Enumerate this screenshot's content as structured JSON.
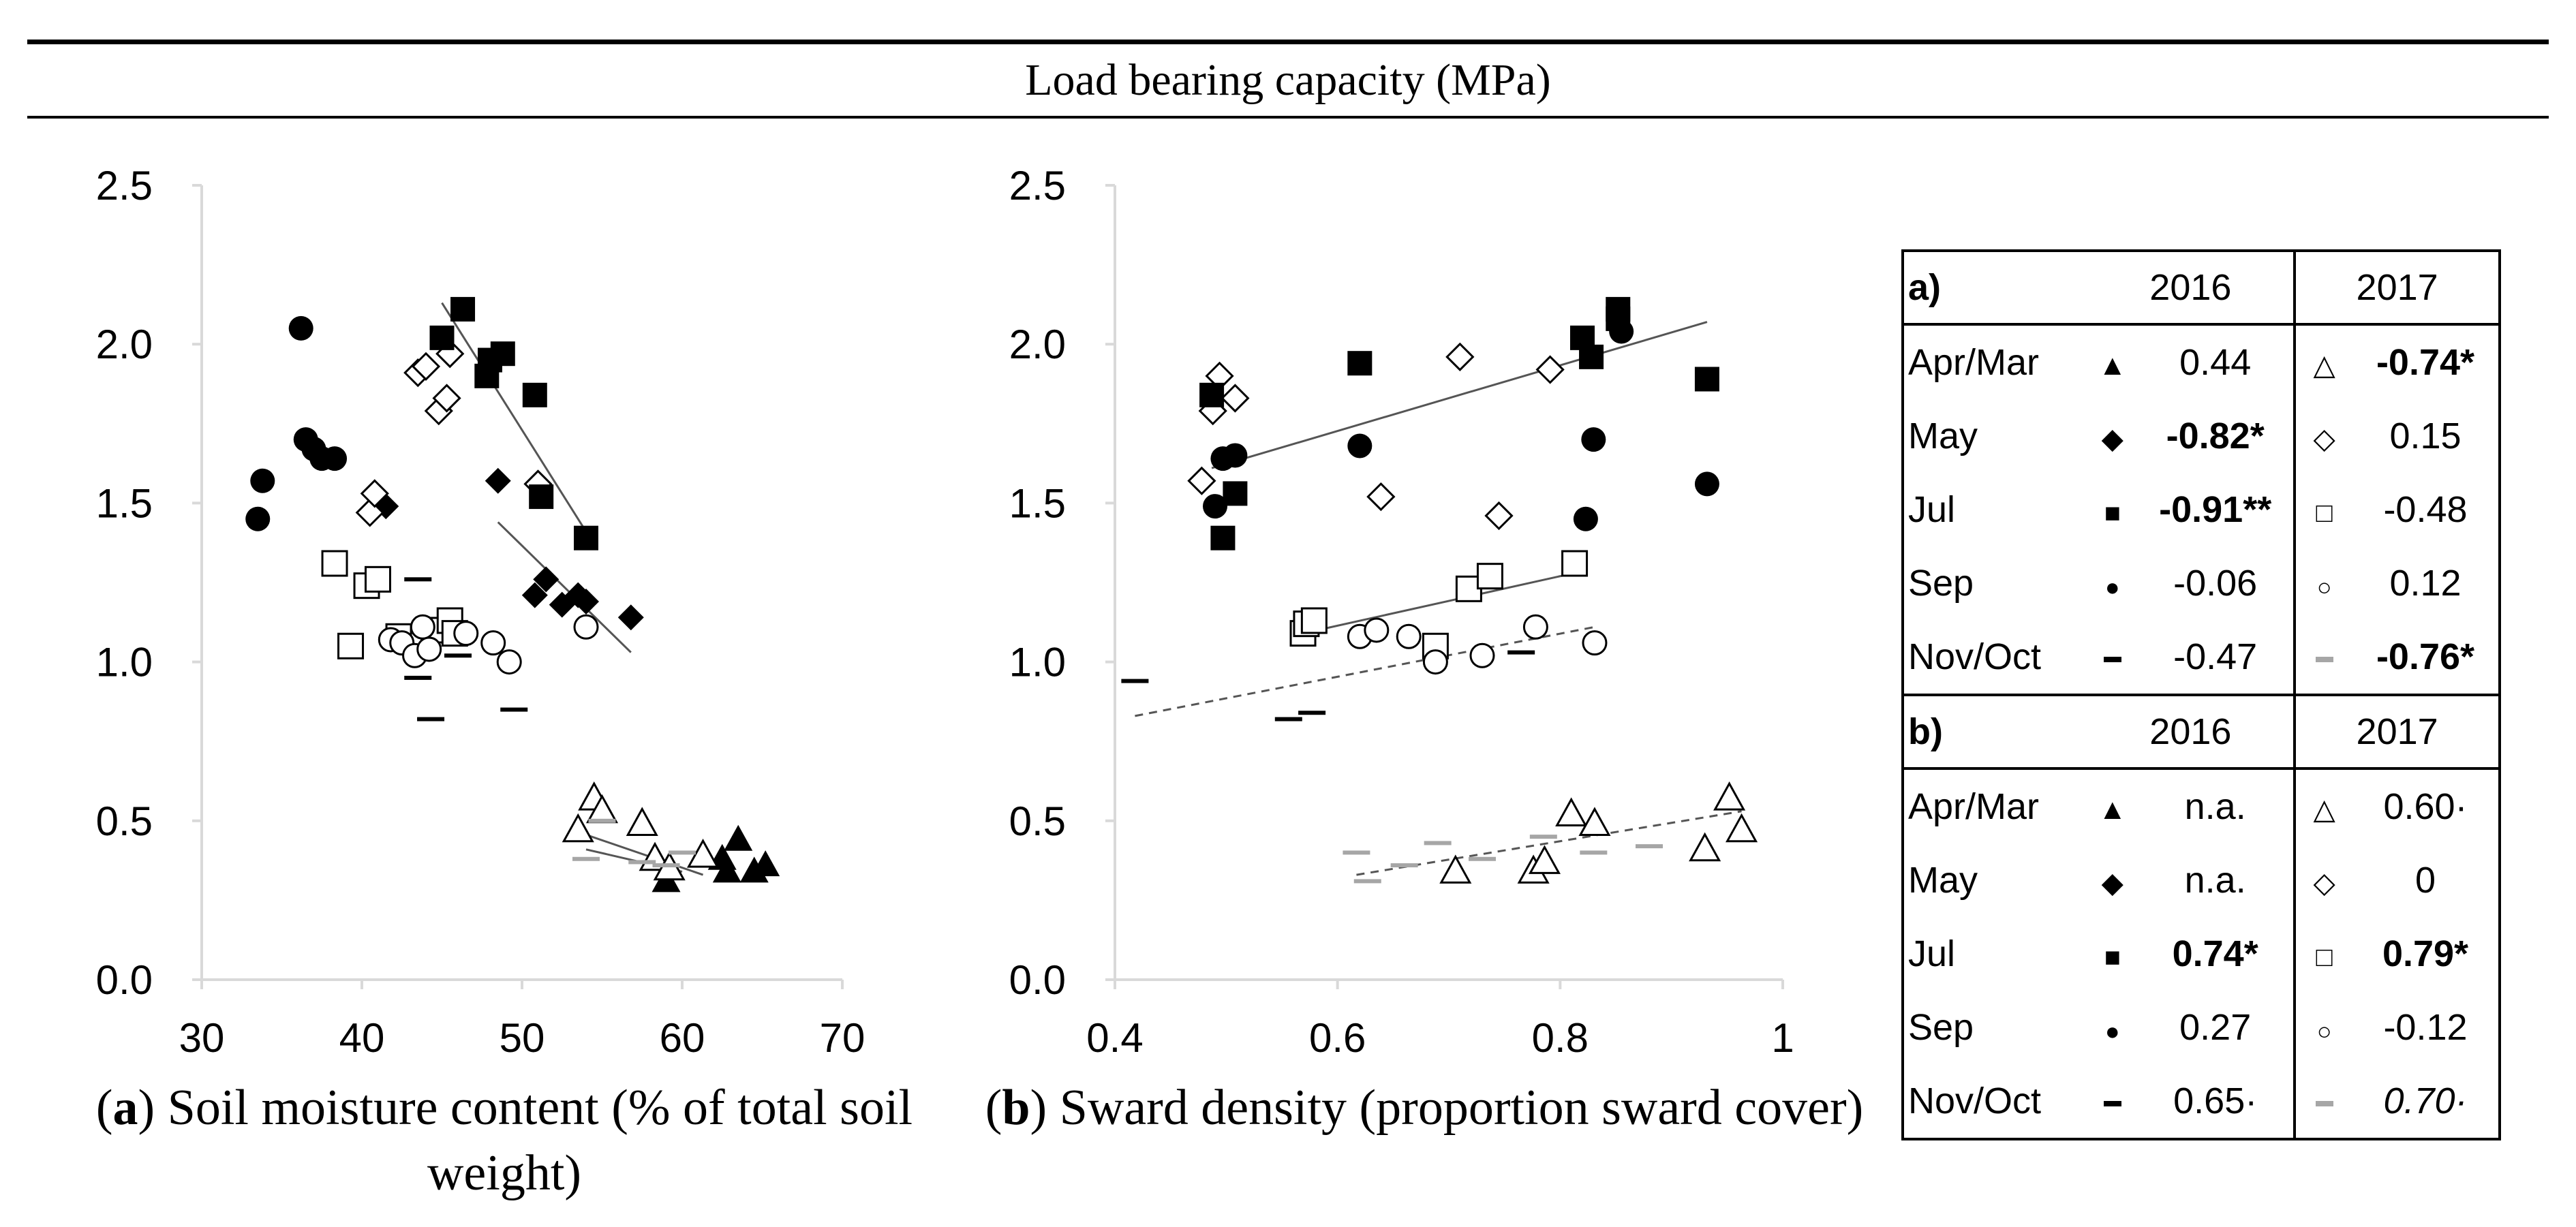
{
  "header": {
    "title": "Load bearing capacity (MPa)"
  },
  "captions": {
    "a": {
      "letter": "a",
      "text": " Soil moisture content (% of total soil weight)"
    },
    "b": {
      "letter": "b",
      "text": " Sward density (proportion sward cover)"
    }
  },
  "legend_table": {
    "years": [
      "2016",
      "2017"
    ],
    "a": {
      "label": "a)",
      "rows": [
        {
          "label": "Apr/Mar",
          "sym16": "filled-triangle",
          "v16": "0.44",
          "v16_bold": false,
          "sym17": "open-triangle",
          "v17": "-0.74*",
          "v17_bold": true,
          "v17_italic": false
        },
        {
          "label": "May",
          "sym16": "filled-diamond",
          "v16": "-0.82*",
          "v16_bold": true,
          "sym17": "open-diamond",
          "v17": "0.15",
          "v17_bold": false,
          "v17_italic": false
        },
        {
          "label": "Jul",
          "sym16": "filled-square",
          "v16": "-0.91**",
          "v16_bold": true,
          "sym17": "open-square",
          "v17": "-0.48",
          "v17_bold": false,
          "v17_italic": false
        },
        {
          "label": "Sep",
          "sym16": "filled-circle",
          "v16": "-0.06",
          "v16_bold": false,
          "sym17": "open-circle",
          "v17": "0.12",
          "v17_bold": false,
          "v17_italic": false
        },
        {
          "label": "Nov/Oct",
          "sym16": "black-dash",
          "v16": "-0.47",
          "v16_bold": false,
          "sym17": "grey-dash",
          "v17": "-0.76*",
          "v17_bold": true,
          "v17_italic": false
        }
      ]
    },
    "b": {
      "label": "b)",
      "rows": [
        {
          "label": "Apr/Mar",
          "sym16": "filled-triangle",
          "v16": "n.a.",
          "v16_bold": false,
          "sym17": "open-triangle",
          "v17": "0.60·",
          "v17_bold": false,
          "v17_italic": false
        },
        {
          "label": "May",
          "sym16": "filled-diamond",
          "v16": "n.a.",
          "v16_bold": false,
          "sym17": "open-diamond",
          "v17": "0",
          "v17_bold": false,
          "v17_italic": false
        },
        {
          "label": "Jul",
          "sym16": "filled-square",
          "v16": "0.74*",
          "v16_bold": true,
          "sym17": "open-square",
          "v17": "0.79*",
          "v17_bold": true,
          "v17_italic": false
        },
        {
          "label": "Sep",
          "sym16": "filled-circle",
          "v16": "0.27",
          "v16_bold": false,
          "sym17": "open-circle",
          "v17": "-0.12",
          "v17_bold": false,
          "v17_italic": false
        },
        {
          "label": "Nov/Oct",
          "sym16": "black-dash",
          "v16": "0.65·",
          "v16_bold": false,
          "sym17": "grey-dash",
          "v17": "0.70·",
          "v17_bold": false,
          "v17_italic": true
        }
      ]
    }
  },
  "colors": {
    "axis": "#d9d9d9",
    "grey_dash": "#a6a6a6",
    "black": "#000000",
    "open_fill": "#ffffff"
  },
  "chart_data": [
    {
      "type": "scatter",
      "xlim": [
        30,
        70
      ],
      "ylim": [
        0.0,
        2.5
      ],
      "xticks": [
        "30",
        "40",
        "50",
        "60",
        "70"
      ],
      "yticks": [
        "0.0",
        "0.5",
        "1.0",
        "1.5",
        "2.0",
        "2.5"
      ],
      "series": [
        {
          "name": "Apr/Mar 2016",
          "marker": "filled-triangle",
          "points": [
            [
              59,
              0.31
            ],
            [
              62.5,
              0.38
            ],
            [
              63.5,
              0.44
            ],
            [
              64.5,
              0.34
            ],
            [
              65.2,
              0.36
            ],
            [
              62.8,
              0.34
            ]
          ]
        },
        {
          "name": "Apr/Mar 2017",
          "marker": "open-triangle",
          "points": [
            [
              53.5,
              0.47
            ],
            [
              54.5,
              0.57
            ],
            [
              55,
              0.53
            ],
            [
              57.5,
              0.49
            ],
            [
              58.3,
              0.38
            ],
            [
              59.2,
              0.35
            ],
            [
              61.3,
              0.39
            ]
          ]
        },
        {
          "name": "May 2016",
          "marker": "filled-diamond",
          "points": [
            [
              41.5,
              1.49
            ],
            [
              48.5,
              1.57
            ],
            [
              50.8,
              1.21
            ],
            [
              51.5,
              1.26
            ],
            [
              52.5,
              1.18
            ],
            [
              53.5,
              1.21
            ],
            [
              54,
              1.19
            ],
            [
              56.8,
              1.14
            ]
          ]
        },
        {
          "name": "May 2017",
          "marker": "open-diamond",
          "points": [
            [
              40.5,
              1.47
            ],
            [
              40.8,
              1.53
            ],
            [
              43.5,
              1.91
            ],
            [
              44,
              1.93
            ],
            [
              44.8,
              1.79
            ],
            [
              45.3,
              1.83
            ],
            [
              45.5,
              1.97
            ],
            [
              51,
              1.56
            ]
          ]
        },
        {
          "name": "Jul 2016",
          "marker": "filled-square",
          "points": [
            [
              45,
              2.02
            ],
            [
              46.3,
              2.11
            ],
            [
              47.8,
              1.9
            ],
            [
              48,
              1.95
            ],
            [
              48.8,
              1.97
            ],
            [
              50.8,
              1.84
            ],
            [
              51.2,
              1.52
            ],
            [
              54,
              1.39
            ]
          ]
        },
        {
          "name": "Jul 2017",
          "marker": "open-square",
          "points": [
            [
              38.3,
              1.31
            ],
            [
              39.3,
              1.05
            ],
            [
              40.3,
              1.24
            ],
            [
              41,
              1.26
            ],
            [
              42.3,
              1.08
            ],
            [
              44.5,
              1.1
            ],
            [
              45.5,
              1.13
            ],
            [
              45.8,
              1.09
            ]
          ]
        },
        {
          "name": "Sep 2016",
          "marker": "filled-circle",
          "points": [
            [
              33.5,
              1.45
            ],
            [
              33.8,
              1.57
            ],
            [
              36.2,
              2.05
            ],
            [
              36.5,
              1.7
            ],
            [
              37,
              1.67
            ],
            [
              37.5,
              1.64
            ],
            [
              38.3,
              1.64
            ]
          ]
        },
        {
          "name": "Sep 2017",
          "marker": "open-circle",
          "points": [
            [
              41.8,
              1.07
            ],
            [
              42.5,
              1.06
            ],
            [
              43.3,
              1.02
            ],
            [
              43.8,
              1.11
            ],
            [
              44.2,
              1.04
            ],
            [
              46.5,
              1.09
            ],
            [
              48.2,
              1.06
            ],
            [
              49.2,
              1.0
            ],
            [
              54,
              1.11
            ]
          ]
        },
        {
          "name": "Nov/Oct 2016",
          "marker": "black-dash",
          "points": [
            [
              43.5,
              1.26
            ],
            [
              43.5,
              0.95
            ],
            [
              44.3,
              0.82
            ],
            [
              49.5,
              0.85
            ],
            [
              46,
              1.02
            ]
          ]
        },
        {
          "name": "Nov/Oct 2017",
          "marker": "grey-dash",
          "points": [
            [
              54,
              0.38
            ],
            [
              55,
              0.5
            ],
            [
              57.5,
              0.37
            ],
            [
              59,
              0.36
            ],
            [
              60,
              0.4
            ]
          ]
        }
      ],
      "trendlines": [
        {
          "series": "Jul 2016",
          "style": "solid",
          "from": [
            45,
            2.13
          ],
          "to": [
            54,
            1.41
          ]
        },
        {
          "series": "May 2016",
          "style": "solid",
          "from": [
            48.5,
            1.44
          ],
          "to": [
            56.8,
            1.03
          ]
        },
        {
          "series": "Apr/Mar 2017",
          "style": "solid",
          "from": [
            53.2,
            0.47
          ],
          "to": [
            61.3,
            0.33
          ]
        },
        {
          "series": "Nov/Oct 2017",
          "style": "solid",
          "from": [
            54,
            0.41
          ],
          "to": [
            60,
            0.34
          ]
        }
      ]
    },
    {
      "type": "scatter",
      "xlim": [
        0.4,
        1.0
      ],
      "ylim": [
        0.0,
        2.5
      ],
      "xticks": [
        "0.4",
        "0.6",
        "0.8",
        "1"
      ],
      "yticks": [
        "0.0",
        "0.5",
        "1.0",
        "1.5",
        "2.0",
        "2.5"
      ],
      "series": [
        {
          "name": "Apr/Mar 2017",
          "marker": "open-triangle",
          "points": [
            [
              0.706,
              0.34
            ],
            [
              0.776,
              0.34
            ],
            [
              0.786,
              0.37
            ],
            [
              0.81,
              0.52
            ],
            [
              0.831,
              0.49
            ],
            [
              0.93,
              0.41
            ],
            [
              0.952,
              0.57
            ],
            [
              0.963,
              0.47
            ]
          ]
        },
        {
          "name": "May 2017",
          "marker": "open-diamond",
          "points": [
            [
              0.478,
              1.57
            ],
            [
              0.488,
              1.79
            ],
            [
              0.494,
              1.9
            ],
            [
              0.508,
              1.83
            ],
            [
              0.639,
              1.52
            ],
            [
              0.71,
              1.96
            ],
            [
              0.745,
              1.46
            ],
            [
              0.791,
              1.92
            ]
          ]
        },
        {
          "name": "Jul 2016",
          "marker": "filled-square",
          "points": [
            [
              0.487,
              1.84
            ],
            [
              0.497,
              1.39
            ],
            [
              0.508,
              1.53
            ],
            [
              0.62,
              1.94
            ],
            [
              0.82,
              2.02
            ],
            [
              0.828,
              1.96
            ],
            [
              0.852,
              2.11
            ],
            [
              0.852,
              2.08
            ],
            [
              0.932,
              1.89
            ]
          ]
        },
        {
          "name": "Jul 2017",
          "marker": "open-square",
          "points": [
            [
              0.569,
              1.09
            ],
            [
              0.572,
              1.12
            ],
            [
              0.579,
              1.13
            ],
            [
              0.688,
              1.05
            ],
            [
              0.718,
              1.23
            ],
            [
              0.737,
              1.27
            ],
            [
              0.813,
              1.31
            ]
          ]
        },
        {
          "name": "Sep 2016",
          "marker": "filled-circle",
          "points": [
            [
              0.49,
              1.49
            ],
            [
              0.497,
              1.64
            ],
            [
              0.508,
              1.65
            ],
            [
              0.62,
              1.68
            ],
            [
              0.823,
              1.45
            ],
            [
              0.83,
              1.7
            ],
            [
              0.855,
              2.04
            ],
            [
              0.932,
              1.56
            ]
          ]
        },
        {
          "name": "Sep 2017",
          "marker": "open-circle",
          "points": [
            [
              0.62,
              1.08
            ],
            [
              0.635,
              1.1
            ],
            [
              0.664,
              1.08
            ],
            [
              0.688,
              1.0
            ],
            [
              0.73,
              1.02
            ],
            [
              0.778,
              1.11
            ],
            [
              0.831,
              1.06
            ]
          ]
        },
        {
          "name": "Nov/Oct 2016",
          "marker": "black-dash",
          "points": [
            [
              0.418,
              0.94
            ],
            [
              0.556,
              0.82
            ],
            [
              0.577,
              0.84
            ],
            [
              0.765,
              1.03
            ]
          ]
        },
        {
          "name": "Nov/Oct 2017",
          "marker": "grey-dash",
          "points": [
            [
              0.617,
              0.4
            ],
            [
              0.627,
              0.31
            ],
            [
              0.66,
              0.36
            ],
            [
              0.69,
              0.43
            ],
            [
              0.73,
              0.38
            ],
            [
              0.785,
              0.45
            ],
            [
              0.83,
              0.4
            ],
            [
              0.88,
              0.42
            ]
          ]
        }
      ],
      "trendlines": [
        {
          "series": "Jul 2016",
          "style": "solid",
          "from": [
            0.487,
            1.61
          ],
          "to": [
            0.932,
            2.07
          ]
        },
        {
          "series": "Jul 2017",
          "style": "solid",
          "from": [
            0.569,
            1.09
          ],
          "to": [
            0.813,
            1.28
          ]
        },
        {
          "series": "Nov/Oct 2016",
          "style": "dashed",
          "from": [
            0.418,
            0.83
          ],
          "to": [
            0.831,
            1.11
          ]
        },
        {
          "series": "Nov/Oct 2017",
          "style": "dashed",
          "from": [
            0.617,
            0.33
          ],
          "to": [
            0.963,
            0.53
          ]
        }
      ]
    }
  ]
}
